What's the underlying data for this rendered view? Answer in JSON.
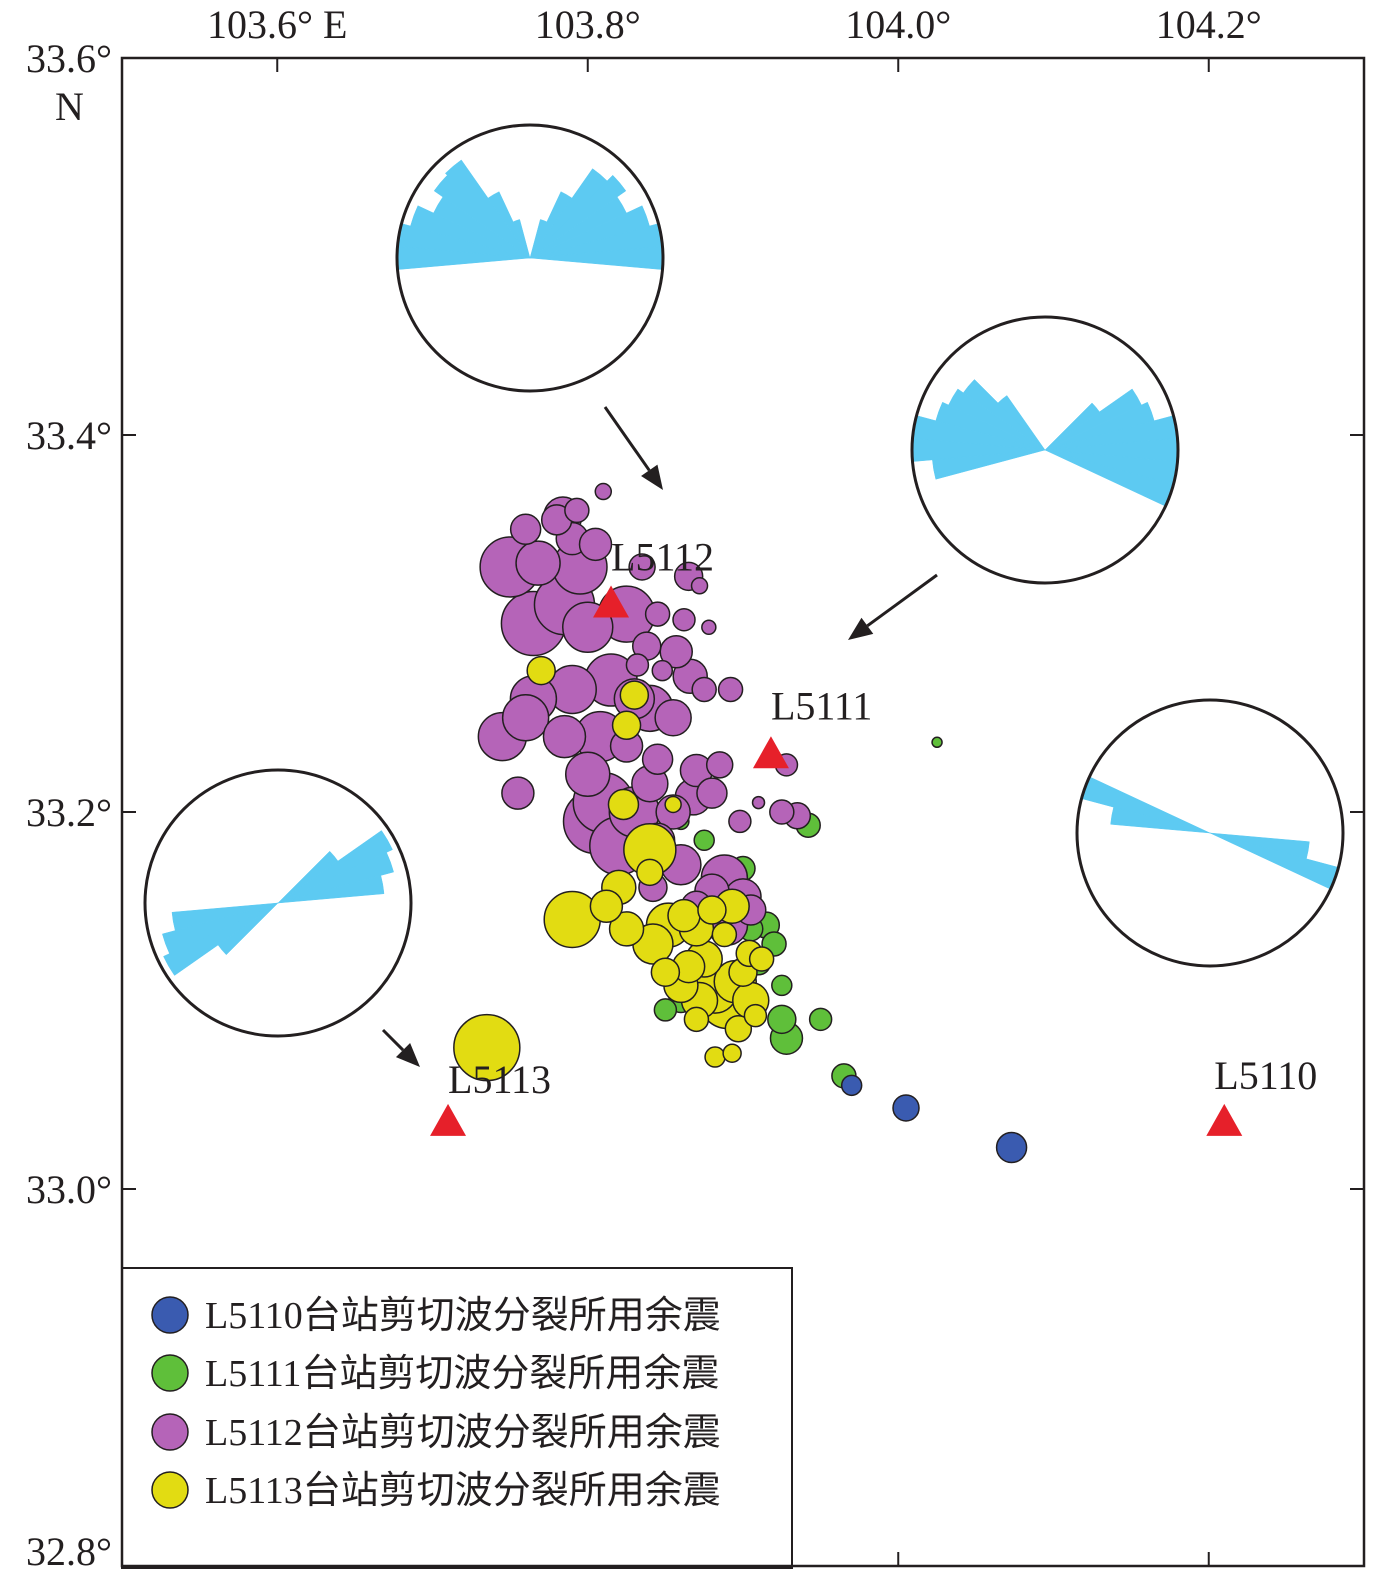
{
  "colors": {
    "L5110": "#3a5bb0",
    "L5111": "#5fbf3a",
    "L5112": "#b564b8",
    "L5113": "#e2dc12",
    "station": "#e6202a",
    "rose": "#5dcaf2",
    "frame": "#231f20"
  },
  "axes": {
    "x_ticks": [
      {
        "value": 103.6,
        "label": "103.6° E"
      },
      {
        "value": 103.8,
        "label": "103.8°"
      },
      {
        "value": 104.0,
        "label": "104.0°"
      },
      {
        "value": 104.2,
        "label": "104.2°"
      }
    ],
    "y_ticks": [
      {
        "value": 33.6,
        "label": "33.6°"
      },
      {
        "value": 33.4,
        "label": "33.4°"
      },
      {
        "value": 33.2,
        "label": "33.2°"
      },
      {
        "value": 33.0,
        "label": "33.0°"
      },
      {
        "value": 32.8,
        "label": "32.8°"
      }
    ],
    "y_extra_label": "N",
    "xlim": [
      103.5,
      104.3
    ],
    "ylim": [
      32.8,
      33.6
    ]
  },
  "stations": [
    {
      "name": "L5112",
      "lon": 103.815,
      "lat": 33.31
    },
    {
      "name": "L5111",
      "lon": 103.918,
      "lat": 33.23
    },
    {
      "name": "L5113",
      "lon": 103.71,
      "lat": 33.035
    },
    {
      "name": "L5110",
      "lon": 104.21,
      "lat": 33.035
    }
  ],
  "legend": [
    {
      "key": "L5110",
      "label": "L5110台站剪切波分裂所用余震"
    },
    {
      "key": "L5111",
      "label": "L5111台站剪切波分裂所用余震"
    },
    {
      "key": "L5112",
      "label": "L5112台站剪切波分裂所用余震"
    },
    {
      "key": "L5113",
      "label": "L5113台站剪切波分裂所用余震"
    }
  ],
  "chart_data": {
    "type": "scatter",
    "title": "",
    "xlabel": "",
    "ylabel": "",
    "xlim": [
      103.5,
      104.3
    ],
    "ylim": [
      32.8,
      33.6
    ],
    "series": [
      {
        "name": "L5110台站剪切波分裂所用余震",
        "key": "L5110",
        "points": [
          [
            103.97,
            33.055,
            10
          ],
          [
            104.005,
            33.043,
            13
          ],
          [
            104.073,
            33.022,
            15
          ]
        ]
      },
      {
        "name": "L5111台站剪切波分裂所用余震",
        "key": "L5111",
        "points": [
          [
            104.025,
            33.237,
            5
          ],
          [
            103.942,
            33.193,
            12
          ],
          [
            103.86,
            33.195,
            8
          ],
          [
            103.875,
            33.185,
            10
          ],
          [
            103.9,
            33.17,
            12
          ],
          [
            103.915,
            33.14,
            13
          ],
          [
            103.92,
            33.13,
            12
          ],
          [
            103.925,
            33.108,
            10
          ],
          [
            103.925,
            33.09,
            14
          ],
          [
            103.928,
            33.08,
            16
          ],
          [
            103.95,
            33.09,
            11
          ],
          [
            103.965,
            33.06,
            12
          ],
          [
            103.85,
            33.095,
            11
          ],
          [
            103.86,
            33.1,
            12
          ],
          [
            103.9,
            33.115,
            14
          ],
          [
            103.91,
            33.12,
            12
          ],
          [
            103.885,
            33.11,
            13
          ],
          [
            103.905,
            33.138,
            12
          ],
          [
            103.895,
            33.15,
            12
          ]
        ]
      },
      {
        "name": "L5112台站剪切波分裂所用余震",
        "key": "L5112",
        "points": [
          [
            103.81,
            33.37,
            8
          ],
          [
            103.784,
            33.357,
            19
          ],
          [
            103.793,
            33.36,
            12
          ],
          [
            103.78,
            33.355,
            15
          ],
          [
            103.76,
            33.35,
            15
          ],
          [
            103.79,
            33.345,
            16
          ],
          [
            103.805,
            33.342,
            16
          ],
          [
            103.795,
            33.33,
            27
          ],
          [
            103.75,
            33.33,
            30
          ],
          [
            103.768,
            33.332,
            22
          ],
          [
            103.835,
            33.33,
            13
          ],
          [
            103.865,
            33.325,
            14
          ],
          [
            103.872,
            33.32,
            8
          ],
          [
            103.785,
            33.31,
            30
          ],
          [
            103.825,
            33.305,
            28
          ],
          [
            103.8,
            33.298,
            25
          ],
          [
            103.765,
            33.3,
            32
          ],
          [
            103.845,
            33.305,
            12
          ],
          [
            103.862,
            33.302,
            11
          ],
          [
            103.878,
            33.298,
            7
          ],
          [
            103.838,
            33.288,
            14
          ],
          [
            103.857,
            33.285,
            16
          ],
          [
            103.832,
            33.278,
            11
          ],
          [
            103.866,
            33.272,
            17
          ],
          [
            103.848,
            33.275,
            10
          ],
          [
            103.875,
            33.265,
            12
          ],
          [
            103.892,
            33.265,
            12
          ],
          [
            103.815,
            33.27,
            26
          ],
          [
            103.79,
            33.265,
            24
          ],
          [
            103.765,
            33.26,
            23
          ],
          [
            103.84,
            33.255,
            23
          ],
          [
            103.83,
            33.26,
            20
          ],
          [
            103.855,
            33.25,
            18
          ],
          [
            103.808,
            33.24,
            25
          ],
          [
            103.76,
            33.25,
            23
          ],
          [
            103.785,
            33.24,
            21
          ],
          [
            103.8,
            33.22,
            22
          ],
          [
            103.825,
            33.235,
            16
          ],
          [
            103.845,
            33.228,
            15
          ],
          [
            103.87,
            33.222,
            16
          ],
          [
            103.885,
            33.225,
            13
          ],
          [
            103.868,
            33.208,
            18
          ],
          [
            103.855,
            33.2,
            17
          ],
          [
            103.81,
            33.205,
            30
          ],
          [
            103.82,
            33.182,
            29
          ],
          [
            103.805,
            33.195,
            32
          ],
          [
            103.83,
            33.2,
            25
          ],
          [
            103.84,
            33.215,
            18
          ],
          [
            103.845,
            33.185,
            17
          ],
          [
            103.86,
            33.172,
            20
          ],
          [
            103.888,
            33.165,
            23
          ],
          [
            103.9,
            33.155,
            18
          ],
          [
            103.88,
            33.158,
            17
          ],
          [
            103.89,
            33.14,
            20
          ],
          [
            103.87,
            33.15,
            15
          ],
          [
            103.905,
            33.148,
            15
          ],
          [
            103.842,
            33.16,
            14
          ],
          [
            103.898,
            33.195,
            11
          ],
          [
            103.91,
            33.205,
            6
          ],
          [
            103.928,
            33.225,
            11
          ],
          [
            103.925,
            33.2,
            12
          ],
          [
            103.935,
            33.198,
            13
          ],
          [
            103.88,
            33.21,
            15
          ],
          [
            103.755,
            33.21,
            16
          ],
          [
            103.745,
            33.24,
            24
          ]
        ]
      },
      {
        "name": "L5113台站剪切波分裂所用余震",
        "key": "L5113",
        "points": [
          [
            103.735,
            33.075,
            33
          ],
          [
            103.79,
            33.143,
            28
          ],
          [
            103.77,
            33.275,
            14
          ],
          [
            103.83,
            33.262,
            14
          ],
          [
            103.825,
            33.246,
            14
          ],
          [
            103.823,
            33.204,
            15
          ],
          [
            103.855,
            33.204,
            8
          ],
          [
            103.84,
            33.18,
            26
          ],
          [
            103.82,
            33.16,
            17
          ],
          [
            103.84,
            33.168,
            13
          ],
          [
            103.812,
            33.15,
            16
          ],
          [
            103.825,
            33.138,
            17
          ],
          [
            103.842,
            33.13,
            20
          ],
          [
            103.852,
            33.14,
            22
          ],
          [
            103.862,
            33.145,
            16
          ],
          [
            103.87,
            33.138,
            17
          ],
          [
            103.88,
            33.148,
            14
          ],
          [
            103.888,
            33.135,
            12
          ],
          [
            103.893,
            33.15,
            17
          ],
          [
            103.865,
            33.118,
            16
          ],
          [
            103.875,
            33.122,
            18
          ],
          [
            103.85,
            33.115,
            14
          ],
          [
            103.86,
            33.108,
            17
          ],
          [
            103.872,
            33.1,
            18
          ],
          [
            103.882,
            33.105,
            22
          ],
          [
            103.895,
            33.11,
            21
          ],
          [
            103.89,
            33.1,
            28
          ],
          [
            103.905,
            33.1,
            18
          ],
          [
            103.9,
            33.115,
            14
          ],
          [
            103.912,
            33.122,
            12
          ],
          [
            103.904,
            33.125,
            13
          ],
          [
            103.908,
            33.092,
            11
          ],
          [
            103.897,
            33.085,
            13
          ],
          [
            103.87,
            33.09,
            12
          ],
          [
            103.882,
            33.07,
            10
          ],
          [
            103.893,
            33.072,
            9
          ]
        ]
      }
    ]
  },
  "roses": [
    {
      "name": "rose-top",
      "points_to": "L5112",
      "petals": [
        {
          "az": -80,
          "r": 1.0,
          "w": 10
        },
        {
          "az": -70,
          "r": 0.93,
          "w": 10
        },
        {
          "az": -60,
          "r": 0.8,
          "w": 10
        },
        {
          "az": -50,
          "r": 0.88,
          "w": 10
        },
        {
          "az": -40,
          "r": 0.9,
          "w": 10
        },
        {
          "az": -30,
          "r": 0.55,
          "w": 10
        },
        {
          "az": -90,
          "r": 1.0,
          "w": 10
        },
        {
          "az": -20,
          "r": 0.3,
          "w": 10
        },
        {
          "az": 80,
          "r": 1.0,
          "w": 10
        },
        {
          "az": 70,
          "r": 0.93,
          "w": 10
        },
        {
          "az": 60,
          "r": 0.8,
          "w": 10
        },
        {
          "az": 50,
          "r": 0.88,
          "w": 10
        },
        {
          "az": 40,
          "r": 0.82,
          "w": 10
        },
        {
          "az": 30,
          "r": 0.55,
          "w": 10
        },
        {
          "az": 90,
          "r": 1.0,
          "w": 10
        },
        {
          "az": 20,
          "r": 0.3,
          "w": 10
        }
      ]
    },
    {
      "name": "rose-right-upper",
      "points_to": "L5111",
      "petals": [
        {
          "az": -70,
          "r": 0.85,
          "w": 10
        },
        {
          "az": -60,
          "r": 0.8,
          "w": 10
        },
        {
          "az": -50,
          "r": 0.75,
          "w": 10
        },
        {
          "az": -80,
          "r": 1.0,
          "w": 10
        },
        {
          "az": -90,
          "r": 1.0,
          "w": 10
        },
        {
          "az": -100,
          "r": 0.85,
          "w": 10
        },
        {
          "az": -40,
          "r": 0.5,
          "w": 10
        },
        {
          "az": 70,
          "r": 0.85,
          "w": 10
        },
        {
          "az": 60,
          "r": 0.8,
          "w": 10
        },
        {
          "az": 80,
          "r": 1.0,
          "w": 10
        },
        {
          "az": 90,
          "r": 1.0,
          "w": 10
        },
        {
          "az": 100,
          "r": 1.0,
          "w": 10
        },
        {
          "az": 110,
          "r": 1.0,
          "w": 10
        },
        {
          "az": 50,
          "r": 0.5,
          "w": 10
        }
      ]
    },
    {
      "name": "rose-right",
      "points_to": "L5110",
      "petals": [
        {
          "az": -70,
          "r": 1.0,
          "w": 10
        },
        {
          "az": -80,
          "r": 0.75,
          "w": 10
        },
        {
          "az": 100,
          "r": 0.75,
          "w": 10
        },
        {
          "az": 110,
          "r": 1.0,
          "w": 10
        }
      ]
    },
    {
      "name": "rose-left",
      "points_to": "L5113",
      "petals": [
        {
          "az": 60,
          "r": 0.95,
          "w": 10
        },
        {
          "az": 70,
          "r": 0.9,
          "w": 10
        },
        {
          "az": 80,
          "r": 0.8,
          "w": 10
        },
        {
          "az": 50,
          "r": 0.55,
          "w": 10
        },
        {
          "az": -120,
          "r": 0.95,
          "w": 10
        },
        {
          "az": -110,
          "r": 0.9,
          "w": 10
        },
        {
          "az": -100,
          "r": 0.8,
          "w": 10
        },
        {
          "az": -130,
          "r": 0.55,
          "w": 10
        }
      ]
    }
  ]
}
